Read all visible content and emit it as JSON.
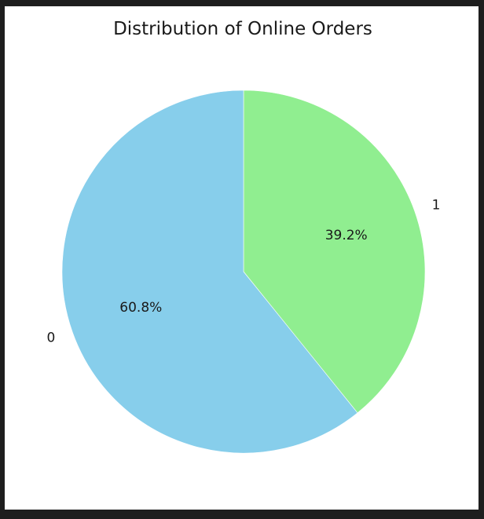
{
  "chart_data": {
    "type": "pie",
    "title": "Distribution of Online Orders",
    "start_angle_deg": 90,
    "direction": "clockwise",
    "slices": [
      {
        "label": "1",
        "value": 39.2,
        "pct_label": "39.2%",
        "color": "#90EE90"
      },
      {
        "label": "0",
        "value": 60.8,
        "pct_label": "60.8%",
        "color": "#87CEEB"
      }
    ]
  }
}
